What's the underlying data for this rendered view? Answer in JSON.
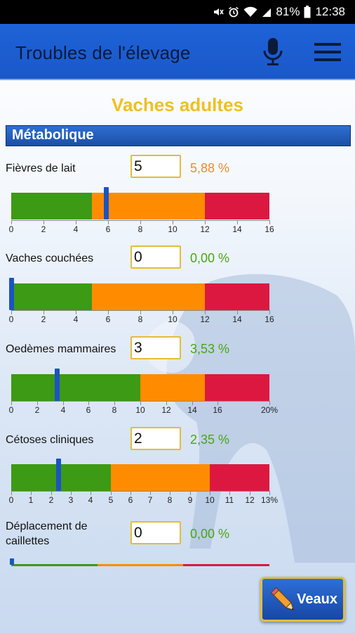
{
  "status_bar": {
    "battery": "81%",
    "time": "12:38",
    "icons": [
      "mute-icon",
      "alarm-icon",
      "wifi-icon",
      "signal-icon",
      "battery-icon"
    ]
  },
  "app_bar": {
    "title": "Troubles de l'élevage",
    "icons": [
      "microphone-icon",
      "hamburger-menu-icon"
    ]
  },
  "section_title": "Vaches adultes",
  "category": "Métabolique",
  "colors": {
    "green": "#3c9a14",
    "orange": "#ff8c00",
    "red": "#dd1840",
    "marker": "#1b53c4",
    "pct_orange": "#f08c2c",
    "pct_green": "#4aa512",
    "accent_gold": "#f0c020"
  },
  "rows": [
    {
      "label": "Fièvres de lait",
      "value": "5",
      "percent": "5,88 %",
      "percent_color": "orange",
      "scale_max": 16,
      "marker_value": 5.88,
      "segments": [
        {
          "color": "green",
          "to": 5
        },
        {
          "color": "orange",
          "to": 12
        },
        {
          "color": "red",
          "to": 16
        }
      ],
      "ticks": [
        0,
        2,
        4,
        6,
        8,
        10,
        12,
        14,
        16
      ],
      "tick_labels": [
        "0",
        "2",
        "4",
        "6",
        "8",
        "10",
        "12",
        "14",
        "16"
      ]
    },
    {
      "label": "Vaches couchées",
      "value": "0",
      "percent": "0,00 %",
      "percent_color": "green",
      "scale_max": 16,
      "marker_value": 0,
      "segments": [
        {
          "color": "green",
          "to": 5
        },
        {
          "color": "orange",
          "to": 12
        },
        {
          "color": "red",
          "to": 16
        }
      ],
      "ticks": [
        0,
        2,
        4,
        6,
        8,
        10,
        12,
        14,
        16
      ],
      "tick_labels": [
        "0",
        "2",
        "4",
        "6",
        "8",
        "10",
        "12",
        "14",
        "16"
      ]
    },
    {
      "label": "Oedèmes mammaires",
      "value": "3",
      "percent": "3,53 %",
      "percent_color": "green",
      "scale_max": 20,
      "marker_value": 3.53,
      "segments": [
        {
          "color": "green",
          "to": 10
        },
        {
          "color": "orange",
          "to": 15
        },
        {
          "color": "red",
          "to": 20
        }
      ],
      "ticks": [
        0,
        2,
        4,
        6,
        8,
        10,
        12,
        14,
        16,
        20
      ],
      "tick_labels": [
        "0",
        "2",
        "4",
        "6",
        "8",
        "10",
        "12",
        "14",
        "16",
        "20%"
      ]
    },
    {
      "label": "Cétoses cliniques",
      "value": "2",
      "percent": "2,35 %",
      "percent_color": "green",
      "scale_max": 13,
      "marker_value": 2.35,
      "segments": [
        {
          "color": "green",
          "to": 5
        },
        {
          "color": "orange",
          "to": 10
        },
        {
          "color": "red",
          "to": 13
        }
      ],
      "ticks": [
        0,
        1,
        2,
        3,
        4,
        5,
        6,
        7,
        8,
        9,
        10,
        11,
        12,
        13
      ],
      "tick_labels": [
        "0",
        "1",
        "2",
        "3",
        "4",
        "5",
        "6",
        "7",
        "8",
        "9",
        "10",
        "11",
        "12",
        "13%"
      ]
    },
    {
      "label": "Déplacement de caillettes",
      "value": "0",
      "percent": "0,00 %",
      "percent_color": "green",
      "scale_max": 3,
      "marker_value": 0,
      "segments": [
        {
          "color": "green",
          "to": 1
        },
        {
          "color": "orange",
          "to": 2
        },
        {
          "color": "red",
          "to": 3
        }
      ]
    }
  ],
  "veaux_button": {
    "label": "Veaux",
    "icon": "pencil-icon"
  }
}
